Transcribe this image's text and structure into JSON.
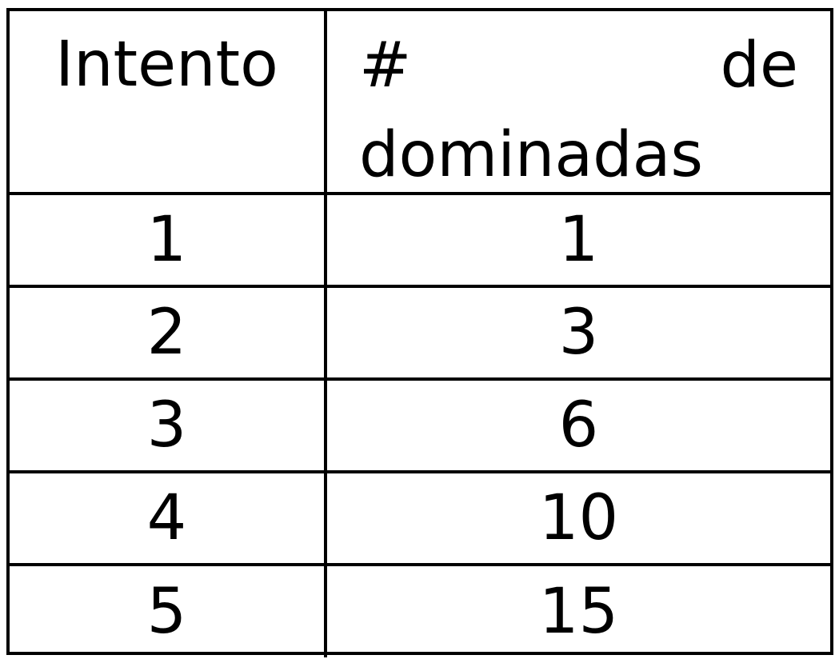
{
  "table": {
    "headers": {
      "col1": "Intento",
      "col2_part1": "#",
      "col2_part2": "de",
      "col2_part3": "dominadas"
    },
    "rows": [
      {
        "intento": "1",
        "dominadas": "1"
      },
      {
        "intento": "2",
        "dominadas": "3"
      },
      {
        "intento": "3",
        "dominadas": "6"
      },
      {
        "intento": "4",
        "dominadas": "10"
      },
      {
        "intento": "5",
        "dominadas": "15"
      }
    ]
  }
}
